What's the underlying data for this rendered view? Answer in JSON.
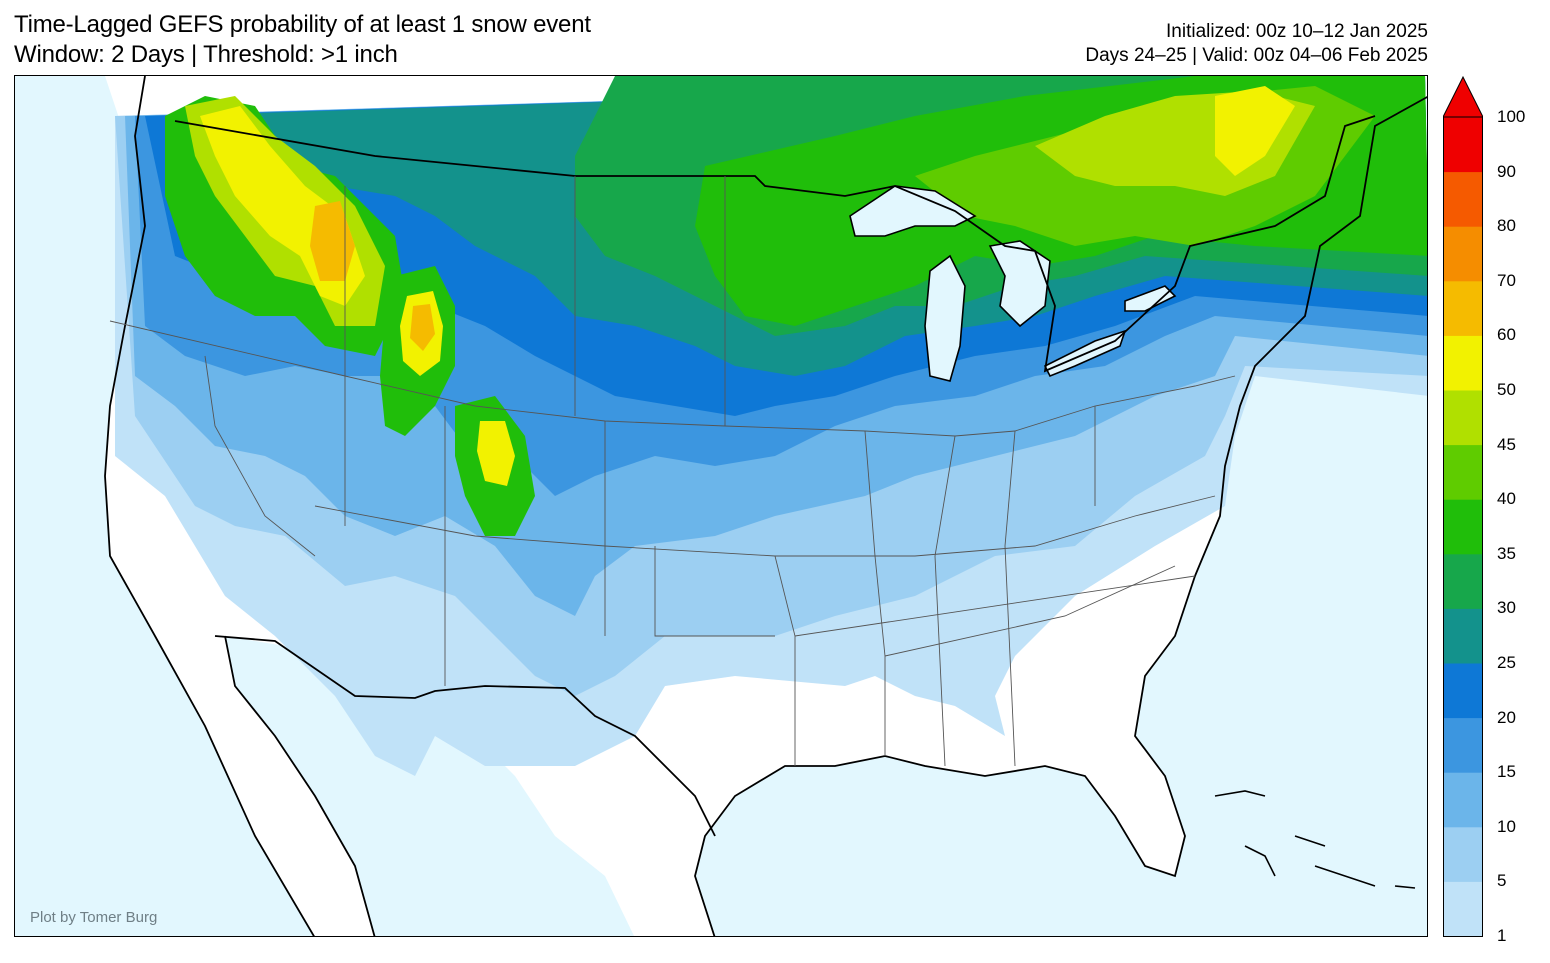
{
  "header": {
    "title_line1": "Time-Lagged GEFS probability of at least 1 snow event",
    "title_line2": "Window: 2 Days | Threshold: >1 inch",
    "init_line": "Initialized: 00z 10–12 Jan 2025",
    "valid_line": "Days 24–25 | Valid: 00z 04–06 Feb 2025"
  },
  "map": {
    "credit": "Plot by Tomer Burg",
    "ocean_color": "#e2f7fe",
    "land_color": "#ffffff"
  },
  "colorbar": {
    "ticks": [
      "1",
      "5",
      "10",
      "15",
      "20",
      "25",
      "30",
      "35",
      "40",
      "45",
      "50",
      "60",
      "70",
      "80",
      "90",
      "100"
    ],
    "colors": [
      "#c0e2f8",
      "#9ccff2",
      "#6bb5ea",
      "#3c96e0",
      "#0e78d6",
      "#13928c",
      "#17a74b",
      "#20be0a",
      "#5fcc00",
      "#b0e000",
      "#f2f200",
      "#f5bb00",
      "#f58d00",
      "#f55a00",
      "#ef0000"
    ],
    "extend_arrow": "max"
  }
}
